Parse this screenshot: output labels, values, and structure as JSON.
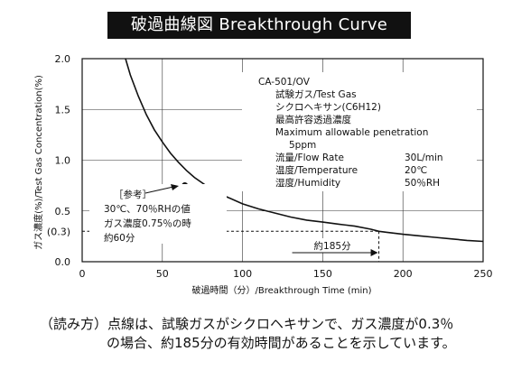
{
  "title": "破過曲線図 Breakthrough Curve",
  "caption": {
    "line1": "（読み方）点線は、試験ガスがシクロヘキサンで、ガス濃度が0.3％",
    "line2": "の場合、約185分の有効時間があることを示しています。"
  },
  "chart_data": {
    "type": "line",
    "xlabel": "破過時間（分）/Breakthrough Time (min)",
    "ylabel": "ガス濃度(%)/Test Gas Concentration(%)",
    "xlim": [
      0,
      250
    ],
    "ylim": [
      0,
      2.0
    ],
    "x_ticks": [
      "0",
      "50",
      "100",
      "150",
      "200",
      "250"
    ],
    "y_ticks": [
      "0.0",
      "0.5",
      "1.0",
      "1.5",
      "2.0"
    ],
    "y_tick_values": [
      0,
      0.5,
      1.0,
      1.5,
      2.0
    ],
    "grid": true,
    "series": [
      {
        "x": [
          27,
          30,
          35,
          40,
          45,
          50,
          55,
          60,
          65,
          70,
          80,
          90,
          100,
          110,
          120,
          130,
          140,
          150,
          160,
          170,
          180,
          185,
          190,
          200,
          210,
          220,
          230,
          240,
          250
        ],
        "y": [
          2.0,
          1.84,
          1.63,
          1.45,
          1.3,
          1.18,
          1.07,
          0.98,
          0.9,
          0.83,
          0.72,
          0.64,
          0.57,
          0.52,
          0.48,
          0.44,
          0.41,
          0.39,
          0.37,
          0.35,
          0.32,
          0.3,
          0.29,
          0.27,
          0.255,
          0.24,
          0.225,
          0.21,
          0.2
        ]
      }
    ],
    "reference_point": {
      "x": 64,
      "y": 0.75
    },
    "reference_line": {
      "y": 0.3,
      "x_end": 185,
      "y_label": "(0.3)"
    },
    "arrow_label": "約185分",
    "reference_note": [
      "［参考］",
      "30℃、70％RHの値",
      "ガス濃度0.75％の時",
      "約60分"
    ],
    "conditions": {
      "model": "CA-501/OV",
      "rows": [
        {
          "label": "試験ガス/Test Gas",
          "value": ""
        },
        {
          "label": "シクロヘキサン(C6H12)",
          "value": ""
        },
        {
          "label": "最高許容透過濃度",
          "value": ""
        },
        {
          "label": "Maximum allowable penetration",
          "value": ""
        },
        {
          "label": "5ppm",
          "value": ""
        },
        {
          "label": "流量/Flow Rate",
          "value": "30L/min"
        },
        {
          "label": "温度/Temperature",
          "value": "20℃"
        },
        {
          "label": "湿度/Humidity",
          "value": "50％RH"
        }
      ]
    }
  }
}
